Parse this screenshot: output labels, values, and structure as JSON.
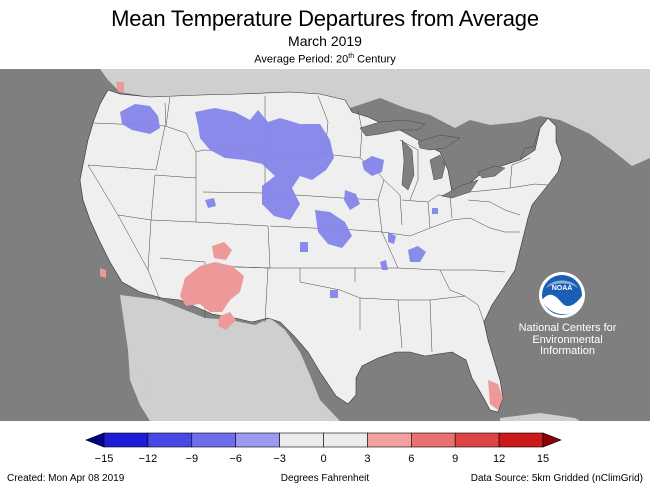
{
  "title": "Mean Temperature Departures from Average",
  "subtitle": "March 2019",
  "period_prefix": "Average Period: 20",
  "period_sup": "th",
  "period_suffix": " Century",
  "logo": {
    "text": "NOAA",
    "icon": "noaa-logo-icon"
  },
  "agency": {
    "line1": "National Centers for",
    "line2": "Environmental",
    "line3": "Information"
  },
  "colorbar": {
    "ticks": [
      "−15",
      "−12",
      "−9",
      "−6",
      "−3",
      "0",
      "3",
      "6",
      "9",
      "12",
      "15"
    ],
    "colors": [
      "#1c1cd6",
      "#4848e6",
      "#6f6fee",
      "#9a9af2",
      "#ececec",
      "#ececec",
      "#f2a0a0",
      "#e87070",
      "#dd4444",
      "#cc1a1a"
    ],
    "under_color": "#00008b",
    "over_color": "#8b0000"
  },
  "footer": {
    "created": "Created: Mon Apr 08 2019",
    "units": "Degrees Fahrenheit",
    "source": "Data Source: 5km Gridded (nClimGrid)"
  },
  "colors": {
    "ocean": "#7f7f7f",
    "land_foreign": "#cfcfcf",
    "land_us": "#efefef",
    "cold": "#8585ea",
    "warm": "#ee9999"
  }
}
